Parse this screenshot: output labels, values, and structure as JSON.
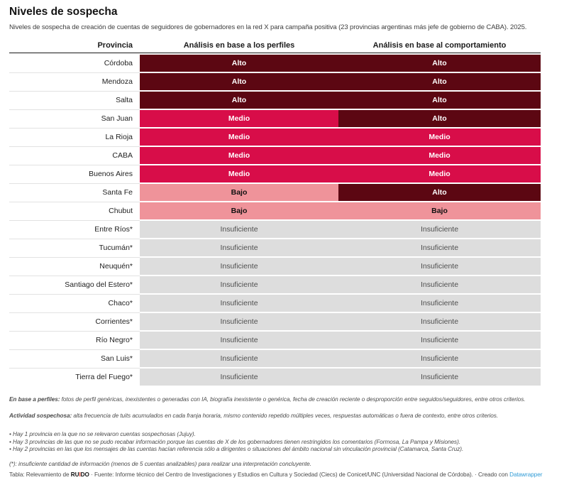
{
  "colors": {
    "alto_bg": "#5c0712",
    "alto_fg": "#ffffff",
    "medio_bg": "#d80d49",
    "medio_fg": "#ffffff",
    "bajo_bg": "#ef939a",
    "bajo_fg": "#111111",
    "insuficiente_bg": "#dddddd",
    "insuficiente_fg": "#4f4f4f",
    "link": "#2f9bd6",
    "ruido_accent": "#e0301e"
  },
  "chart_data": {
    "type": "table",
    "title": "Niveles de sospecha",
    "subtitle": "Niveles de sospecha de creación de cuentas de seguidores de gobernadores en la red X para campaña positiva (23 provincias argentinas más jefe de gobierno de CABA). 2025.",
    "columns": [
      "Provincia",
      "Análisis en base a los perfiles",
      "Análisis en base al comportamiento"
    ],
    "levels": [
      "Alto",
      "Medio",
      "Bajo",
      "Insuficiente"
    ],
    "rows": [
      [
        "Córdoba",
        "Alto",
        "Alto"
      ],
      [
        "Mendoza",
        "Alto",
        "Alto"
      ],
      [
        "Salta",
        "Alto",
        "Alto"
      ],
      [
        "San Juan",
        "Medio",
        "Alto"
      ],
      [
        "La Rioja",
        "Medio",
        "Medio"
      ],
      [
        "CABA",
        "Medio",
        "Medio"
      ],
      [
        "Buenos Aires",
        "Medio",
        "Medio"
      ],
      [
        "Santa Fe",
        "Bajo",
        "Alto"
      ],
      [
        "Chubut",
        "Bajo",
        "Bajo"
      ],
      [
        "Entre Ríos*",
        "Insuficiente",
        "Insuficiente"
      ],
      [
        "Tucumán*",
        "Insuficiente",
        "Insuficiente"
      ],
      [
        "Neuquén*",
        "Insuficiente",
        "Insuficiente"
      ],
      [
        "Santiago del Estero*",
        "Insuficiente",
        "Insuficiente"
      ],
      [
        "Chaco*",
        "Insuficiente",
        "Insuficiente"
      ],
      [
        "Corrientes*",
        "Insuficiente",
        "Insuficiente"
      ],
      [
        "Río Negro*",
        "Insuficiente",
        "Insuficiente"
      ],
      [
        "San Luis*",
        "Insuficiente",
        "Insuficiente"
      ],
      [
        "Tierra del Fuego*",
        "Insuficiente",
        "Insuficiente"
      ]
    ]
  },
  "footnotes": {
    "perfiles_label": "En base a perfiles:",
    "perfiles_text": " fotos de perfil genéricas, inexistentes o generadas con IA, biografía inexistente o genérica, fecha de creación reciente o desproporción entre seguidos/seguidores, entre otros criterios.",
    "actividad_label": "Actividad sospechosa:",
    "actividad_text": " alta frecuencia de tuits acumulados en cada franja horaria, mismo contenido repetido múltiples veces, respuestas automáticas o fuera de contexto, entre otros criterios.",
    "bullets": [
      "Hay 1 provincia en la que no se relevaron cuentas sospechosas (Jujuy).",
      "Hay 3 provincias de las que no se pudo recabar información porque las cuentas de X de los gobernadores tienen restringidos los comentarios (Formosa, La Pampa y Misiones).",
      "Hay 2 provincias en las que los mensajes de las cuentas hacían referencia sólo a dirigentes o situaciones del ámbito nacional sin vinculación provincial (Catamarca, Santa Cruz)."
    ],
    "asterisk_note": "(*): insuficiente cantidad de información (menos de 5 cuentas analizables) para realizar una interpretación concluyente."
  },
  "attribution": {
    "prefix": "Tabla: Relevamiento de ",
    "ruido_start": "RU",
    "ruido_i": "I",
    "ruido_end": "DO",
    "middle": " · Fuente: Informe técnico del Centro de Investigaciones y Estudios en Cultura y Sociedad (Ciecs) de Conicet/UNC (Universidad Nacional de Córdoba). · Creado con ",
    "link_label": "Datawrapper"
  }
}
